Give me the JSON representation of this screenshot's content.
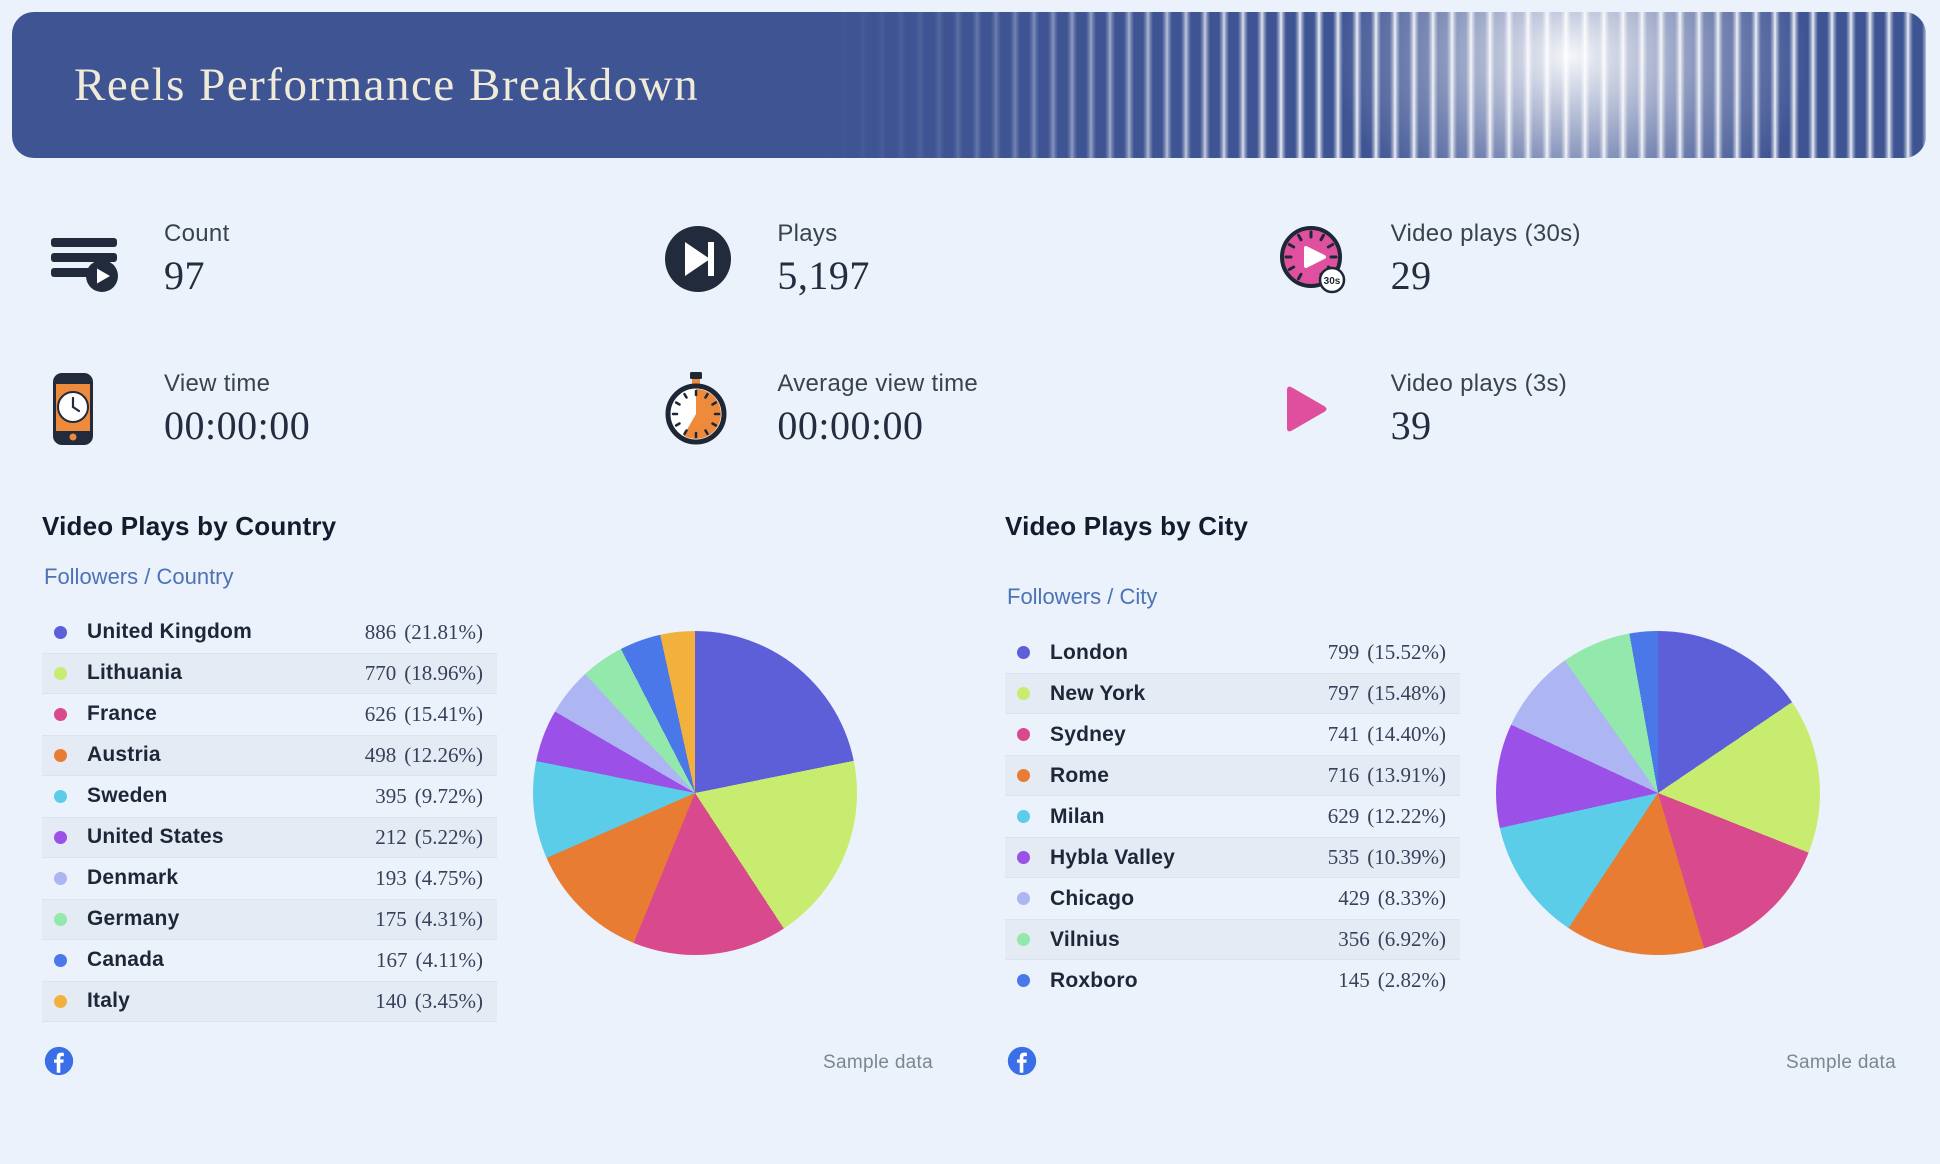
{
  "page": {
    "title": "Reels Performance Breakdown",
    "background_color": "#ebf2fb",
    "banner_color": "#3e5493",
    "banner_title_color": "#f0ead8"
  },
  "stats": {
    "items": [
      {
        "label": "Count",
        "value": "97",
        "icon": "playlist-count-icon"
      },
      {
        "label": "Plays",
        "value": "5,197",
        "icon": "skip-play-icon"
      },
      {
        "label": "Video plays (30s)",
        "value": "29",
        "icon": "timer-30s-icon"
      },
      {
        "label": "View time",
        "value": "00:00:00",
        "icon": "phone-clock-icon"
      },
      {
        "label": "Average view time",
        "value": "00:00:00",
        "icon": "stopwatch-icon"
      },
      {
        "label": "Video plays (3s)",
        "value": "39",
        "icon": "play-triangle-icon"
      }
    ]
  },
  "chart_data": [
    {
      "type": "pie",
      "title": "Video Plays by Country",
      "legend_title": "Followers / Country",
      "legend_position": "left",
      "start_angle_deg": 0,
      "direction": "clockwise",
      "footer_note": "Sample data",
      "source_icon": "facebook-icon",
      "slices": [
        {
          "label": "United Kingdom",
          "value": 886,
          "pct": 21.81,
          "color": "#5d5fd8"
        },
        {
          "label": "Lithuania",
          "value": 770,
          "pct": 18.96,
          "color": "#c8ec70"
        },
        {
          "label": "France",
          "value": 626,
          "pct": 15.41,
          "color": "#d9498e"
        },
        {
          "label": "Austria",
          "value": 498,
          "pct": 12.26,
          "color": "#e87c33"
        },
        {
          "label": "Sweden",
          "value": 395,
          "pct": 9.72,
          "color": "#5bcde8"
        },
        {
          "label": "United States",
          "value": 212,
          "pct": 5.22,
          "color": "#9b50e8"
        },
        {
          "label": "Denmark",
          "value": 193,
          "pct": 4.75,
          "color": "#adb5f2"
        },
        {
          "label": "Germany",
          "value": 175,
          "pct": 4.31,
          "color": "#93e8ab"
        },
        {
          "label": "Canada",
          "value": 167,
          "pct": 4.11,
          "color": "#4a78e8"
        },
        {
          "label": "Italy",
          "value": 140,
          "pct": 3.45,
          "color": "#f1b13c"
        }
      ]
    },
    {
      "type": "pie",
      "title": "Video Plays by City",
      "legend_title": "Followers / City",
      "legend_position": "left",
      "start_angle_deg": 0,
      "direction": "clockwise",
      "footer_note": "Sample data",
      "source_icon": "facebook-icon",
      "slices": [
        {
          "label": "London",
          "value": 799,
          "pct": 15.52,
          "color": "#5d5fd8"
        },
        {
          "label": "New York",
          "value": 797,
          "pct": 15.48,
          "color": "#c8ec70"
        },
        {
          "label": "Sydney",
          "value": 741,
          "pct": 14.4,
          "color": "#d9498e"
        },
        {
          "label": "Rome",
          "value": 716,
          "pct": 13.91,
          "color": "#e87c33"
        },
        {
          "label": "Milan",
          "value": 629,
          "pct": 12.22,
          "color": "#5bcde8"
        },
        {
          "label": "Hybla Valley",
          "value": 535,
          "pct": 10.39,
          "color": "#9b50e8"
        },
        {
          "label": "Chicago",
          "value": 429,
          "pct": 8.33,
          "color": "#adb5f2"
        },
        {
          "label": "Vilnius",
          "value": 356,
          "pct": 6.92,
          "color": "#93e8ab"
        },
        {
          "label": "Roxboro",
          "value": 145,
          "pct": 2.82,
          "color": "#4a78e8"
        }
      ]
    }
  ]
}
